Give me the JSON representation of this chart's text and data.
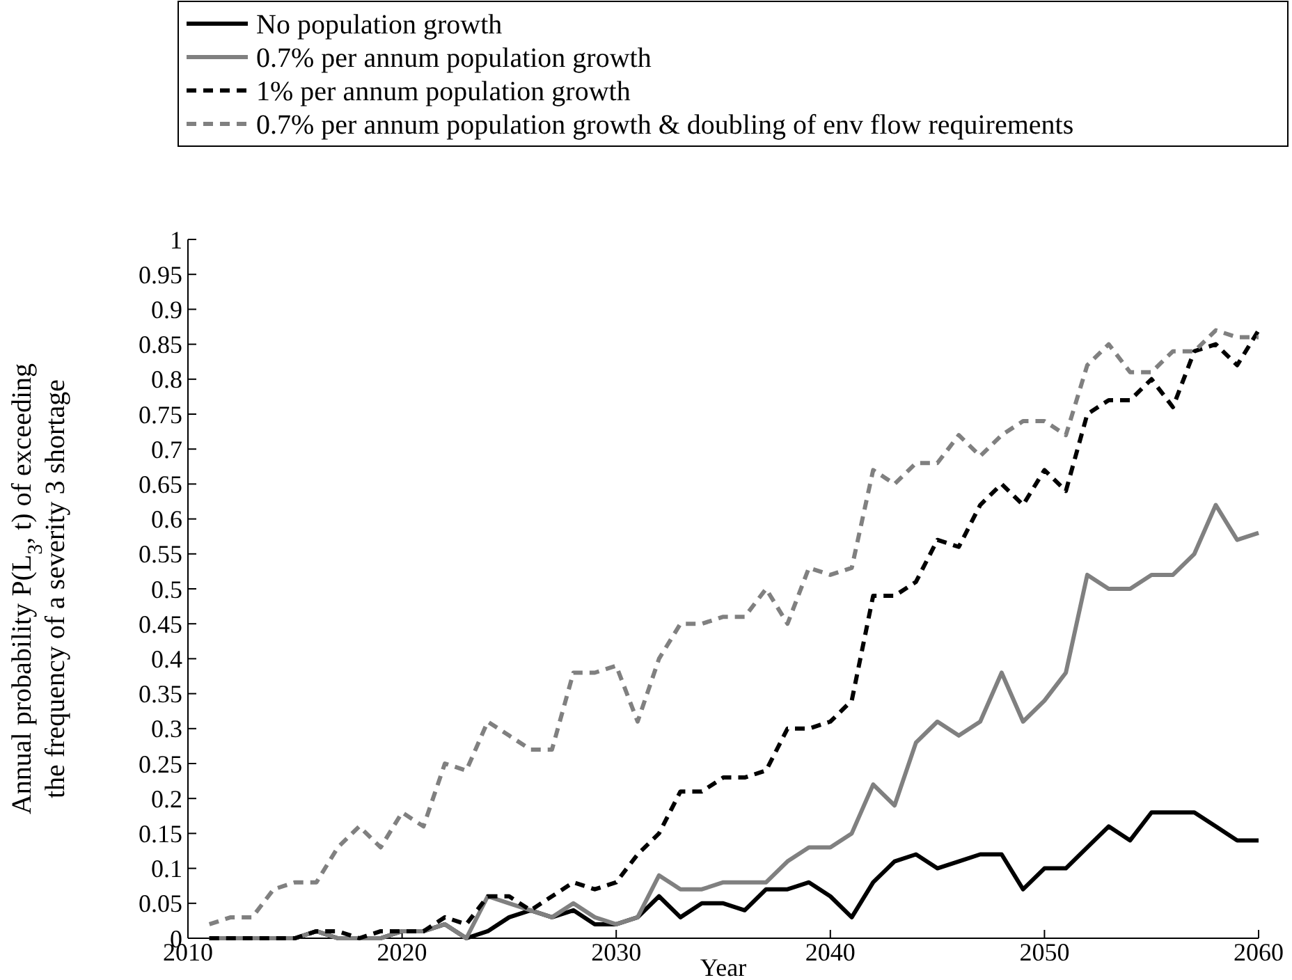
{
  "chart_data": {
    "type": "line",
    "xlabel": "Year",
    "ylabel": "Annual probability P(L$_{3}$, t) of exceeding\nthe frequency of a severity 3 shortage",
    "x": [
      2011,
      2012,
      2013,
      2014,
      2015,
      2016,
      2017,
      2018,
      2019,
      2020,
      2021,
      2022,
      2023,
      2024,
      2025,
      2026,
      2027,
      2028,
      2029,
      2030,
      2031,
      2032,
      2033,
      2034,
      2035,
      2036,
      2037,
      2038,
      2039,
      2040,
      2041,
      2042,
      2043,
      2044,
      2045,
      2046,
      2047,
      2048,
      2049,
      2050,
      2051,
      2052,
      2053,
      2054,
      2055,
      2056,
      2057,
      2058,
      2059,
      2060
    ],
    "series": [
      {
        "name": "No population growth",
        "color": "#000000",
        "line_style": "solid",
        "values": [
          0,
          0,
          0,
          0,
          0,
          0.01,
          0,
          0,
          0,
          0.01,
          0.01,
          0.02,
          0,
          0.01,
          0.03,
          0.04,
          0.03,
          0.04,
          0.02,
          0.02,
          0.03,
          0.06,
          0.03,
          0.05,
          0.05,
          0.04,
          0.07,
          0.07,
          0.08,
          0.06,
          0.03,
          0.08,
          0.11,
          0.12,
          0.1,
          0.11,
          0.12,
          0.12,
          0.07,
          0.1,
          0.1,
          0.13,
          0.16,
          0.14,
          0.18,
          0.18,
          0.18,
          0.16,
          0.14,
          0.14
        ]
      },
      {
        "name": "0.7% per annum population growth",
        "color": "#808080",
        "line_style": "solid",
        "values": [
          0,
          0,
          0,
          0,
          0,
          0.01,
          0,
          0,
          0,
          0.01,
          0.01,
          0.02,
          0,
          0.06,
          0.05,
          0.04,
          0.03,
          0.05,
          0.03,
          0.02,
          0.03,
          0.09,
          0.07,
          0.07,
          0.08,
          0.08,
          0.08,
          0.11,
          0.13,
          0.13,
          0.15,
          0.22,
          0.19,
          0.28,
          0.31,
          0.29,
          0.31,
          0.38,
          0.31,
          0.34,
          0.38,
          0.52,
          0.5,
          0.5,
          0.52,
          0.52,
          0.55,
          0.62,
          0.57,
          0.58
        ]
      },
      {
        "name": "1% per annum population growth",
        "color": "#000000",
        "line_style": "dashed",
        "values": [
          0,
          0,
          0,
          0,
          0,
          0.01,
          0.01,
          0,
          0.01,
          0.01,
          0.01,
          0.03,
          0.02,
          0.06,
          0.06,
          0.04,
          0.06,
          0.08,
          0.07,
          0.08,
          0.12,
          0.15,
          0.21,
          0.21,
          0.23,
          0.23,
          0.24,
          0.3,
          0.3,
          0.31,
          0.34,
          0.49,
          0.49,
          0.51,
          0.57,
          0.56,
          0.62,
          0.65,
          0.62,
          0.67,
          0.64,
          0.75,
          0.77,
          0.77,
          0.8,
          0.76,
          0.84,
          0.85,
          0.82,
          0.87
        ]
      },
      {
        "name": "0.7% per annum population growth & doubling of env flow requirements",
        "color": "#808080",
        "line_style": "dashed",
        "values": [
          0.02,
          0.03,
          0.03,
          0.07,
          0.08,
          0.08,
          0.13,
          0.16,
          0.13,
          0.18,
          0.16,
          0.25,
          0.24,
          0.31,
          0.29,
          0.27,
          0.27,
          0.38,
          0.38,
          0.39,
          0.31,
          0.4,
          0.45,
          0.45,
          0.46,
          0.46,
          0.5,
          0.45,
          0.53,
          0.52,
          0.53,
          0.67,
          0.65,
          0.68,
          0.68,
          0.72,
          0.69,
          0.72,
          0.74,
          0.74,
          0.72,
          0.82,
          0.85,
          0.81,
          0.81,
          0.84,
          0.84,
          0.87,
          0.86,
          0.86
        ]
      }
    ],
    "xlim": [
      2010,
      2060
    ],
    "xticks": [
      2010,
      2020,
      2030,
      2040,
      2050,
      2060
    ],
    "ylim": [
      0,
      1
    ],
    "yticks": [
      0,
      0.05,
      0.1,
      0.15,
      0.2,
      0.25,
      0.3,
      0.35,
      0.4,
      0.45,
      0.5,
      0.55,
      0.6,
      0.65,
      0.7,
      0.75,
      0.8,
      0.85,
      0.9,
      0.95,
      1
    ],
    "grid": false,
    "legend": "top",
    "marker": "none"
  }
}
